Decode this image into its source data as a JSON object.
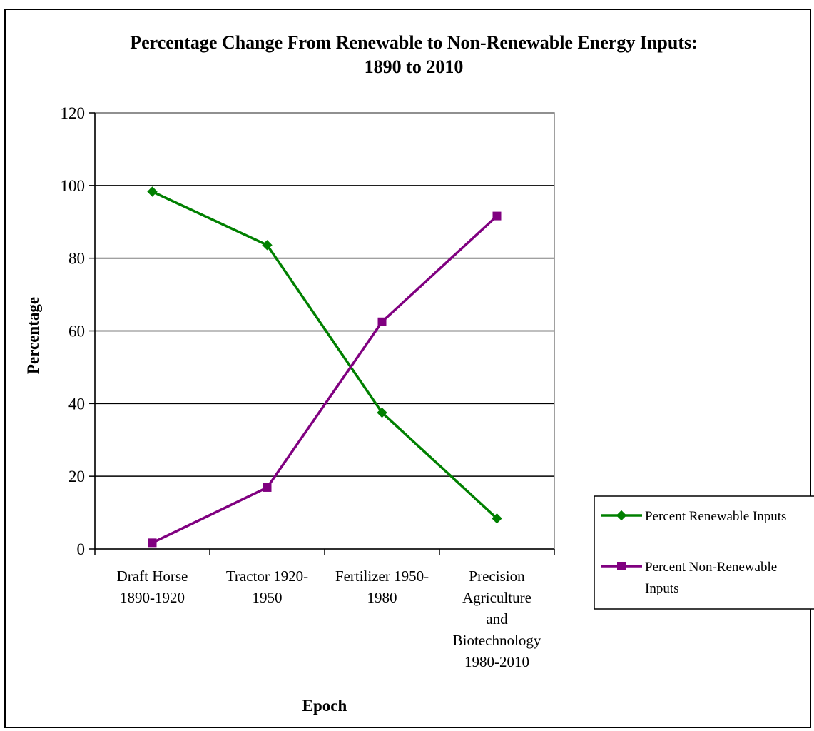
{
  "chart_data": {
    "type": "line",
    "title_lines": [
      "Percentage Change From Renewable to Non-Renewable Energy Inputs:",
      "1890 to 2010"
    ],
    "xlabel": "Epoch",
    "ylabel": "Percentage",
    "ylim": [
      0,
      120
    ],
    "y_ticks": [
      0,
      20,
      40,
      60,
      80,
      100,
      120
    ],
    "grid": true,
    "legend_position": "right",
    "categories": [
      "Draft Horse 1890-1920",
      "Tractor 1920-1950",
      "Fertilizer 1950-1980",
      "Precision Agriculture and Biotechnology 1980-2010"
    ],
    "category_label_lines": [
      [
        "Draft Horse",
        "1890-1920"
      ],
      [
        "Tractor 1920-",
        "1950"
      ],
      [
        "Fertilizer 1950-",
        "1980"
      ],
      [
        "Precision",
        "Agriculture",
        "and",
        "Biotechnology",
        "1980-2010"
      ]
    ],
    "series": [
      {
        "name": "Percent Renewable Inputs",
        "legend_lines": [
          "Percent Renewable Inputs"
        ],
        "color": "#008000",
        "marker": "diamond",
        "values": [
          98.3,
          83.6,
          37.5,
          8.4
        ]
      },
      {
        "name": "Percent Non-Renewable Inputs",
        "legend_lines": [
          "Percent Non-Renewable",
          "Inputs"
        ],
        "color": "#800080",
        "marker": "square",
        "values": [
          1.7,
          16.9,
          62.5,
          91.6
        ]
      }
    ]
  }
}
